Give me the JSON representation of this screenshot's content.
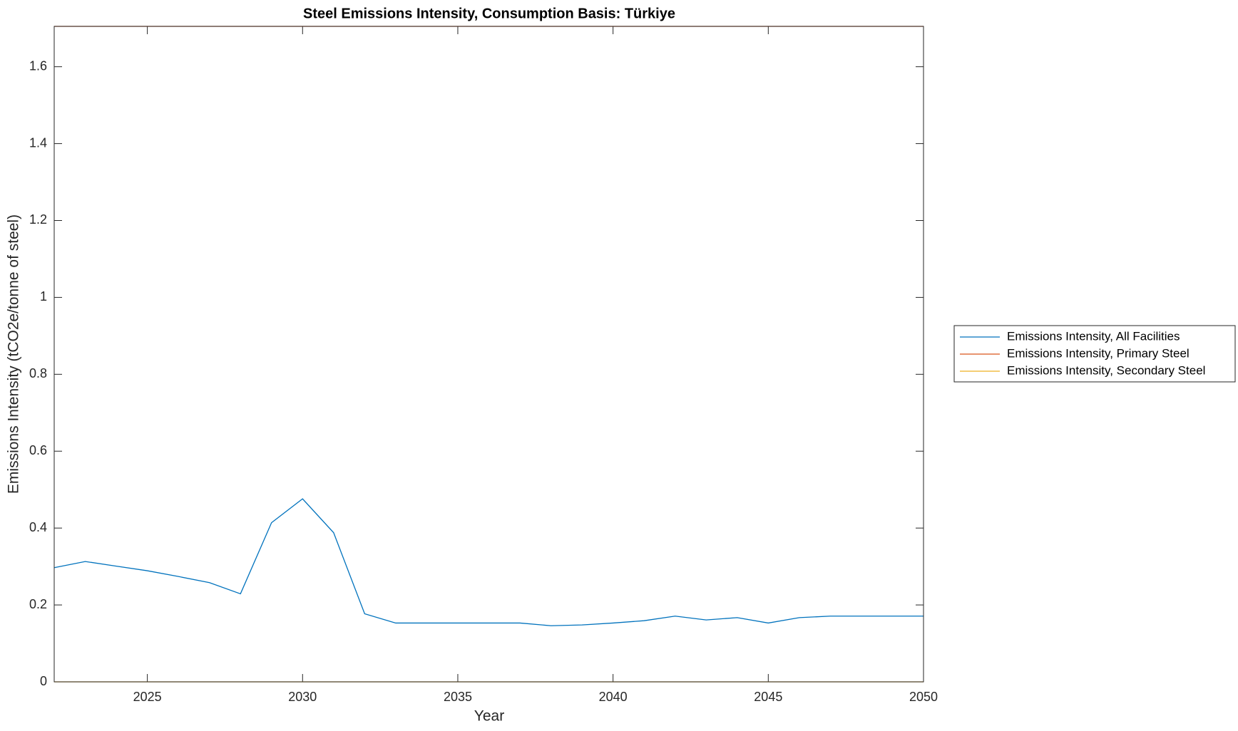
{
  "chart_data": {
    "type": "line",
    "title": "Steel Emissions Intensity, Consumption Basis: Türkiye",
    "x_label": "Year",
    "y_label": "Emissions Intensity (tCO2e/tonne of steel)",
    "x": [
      2022,
      2023,
      2024,
      2025,
      2026,
      2027,
      2028,
      2029,
      2030,
      2031,
      2032,
      2033,
      2034,
      2035,
      2036,
      2037,
      2038,
      2039,
      2040,
      2041,
      2042,
      2043,
      2044,
      2045,
      2046,
      2047,
      2048,
      2049,
      2050
    ],
    "series": [
      {
        "name": "Emissions Intensity, All Facilities",
        "color": "#0072bd",
        "values": [
          0.297,
          0.313,
          0.301,
          0.289,
          0.274,
          0.258,
          0.229,
          0.414,
          0.476,
          0.388,
          0.177,
          0.153,
          0.153,
          0.153,
          0.153,
          0.153,
          0.146,
          0.148,
          0.153,
          0.159,
          0.171,
          0.161,
          0.167,
          0.153,
          0.167,
          0.171,
          0.171,
          0.171,
          0.171
        ]
      },
      {
        "name": "Emissions Intensity, Primary Steel",
        "color": "#d95319",
        "values": [
          1.705,
          1.705,
          1.705,
          1.705,
          1.705,
          1.705,
          1.705,
          1.705,
          1.705,
          1.705,
          1.705,
          1.705,
          1.705,
          1.705,
          1.705,
          1.705,
          1.705,
          1.705,
          1.705,
          1.705,
          1.705,
          1.705,
          1.705,
          1.705,
          1.705,
          1.705,
          1.705,
          1.705,
          1.705
        ]
      },
      {
        "name": "Emissions Intensity, Secondary Steel",
        "color": "#edb120",
        "values": [
          0,
          0,
          0,
          0,
          0,
          0,
          0,
          0,
          0,
          0,
          0,
          0,
          0,
          0,
          0,
          0,
          0,
          0,
          0,
          0,
          0,
          0,
          0,
          0,
          0,
          0,
          0,
          0,
          0
        ]
      }
    ],
    "xlim": [
      2022,
      2050
    ],
    "xticks": [
      2025,
      2030,
      2035,
      2040,
      2045,
      2050
    ],
    "ylim": [
      0,
      1.705
    ],
    "yticks": [
      0,
      0.2,
      0.4,
      0.6,
      0.8,
      1,
      1.2,
      1.4,
      1.6
    ],
    "grid": false,
    "legend": "east outside"
  }
}
